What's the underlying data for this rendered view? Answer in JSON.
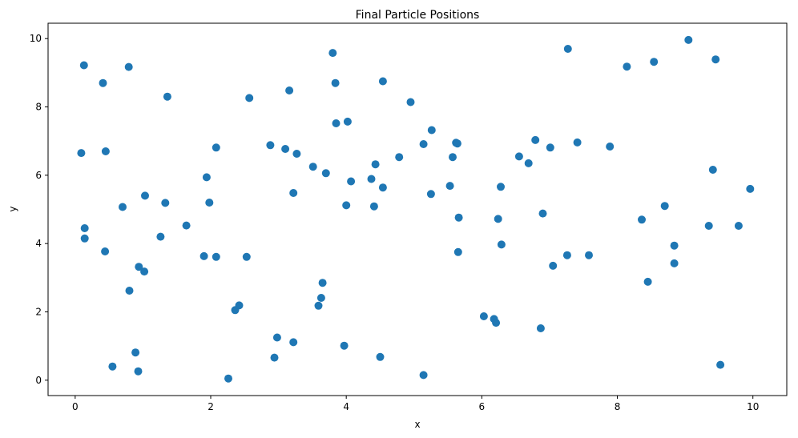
{
  "chart_data": {
    "type": "scatter",
    "title": "Final Particle Positions",
    "xlabel": "x",
    "ylabel": "y",
    "xlim": [
      -0.4,
      10.5
    ],
    "ylim": [
      -0.45,
      10.45
    ],
    "xticks": [
      0,
      2,
      4,
      6,
      8,
      10
    ],
    "yticks": [
      0,
      2,
      4,
      6,
      8,
      10
    ],
    "grid": false,
    "marker_color": "#1f77b4",
    "points": [
      [
        0.09,
        6.65
      ],
      [
        0.13,
        9.22
      ],
      [
        0.14,
        4.45
      ],
      [
        0.14,
        4.15
      ],
      [
        0.41,
        8.7
      ],
      [
        0.44,
        3.77
      ],
      [
        0.45,
        6.7
      ],
      [
        0.55,
        0.4
      ],
      [
        0.7,
        5.07
      ],
      [
        0.79,
        9.17
      ],
      [
        0.8,
        2.62
      ],
      [
        0.89,
        0.81
      ],
      [
        0.93,
        0.26
      ],
      [
        0.94,
        3.32
      ],
      [
        1.02,
        3.18
      ],
      [
        1.03,
        5.4
      ],
      [
        1.26,
        4.2
      ],
      [
        1.33,
        5.19
      ],
      [
        1.36,
        8.3
      ],
      [
        1.64,
        4.53
      ],
      [
        1.9,
        3.63
      ],
      [
        1.94,
        5.94
      ],
      [
        1.98,
        5.2
      ],
      [
        2.08,
        6.81
      ],
      [
        2.08,
        3.61
      ],
      [
        2.26,
        0.05
      ],
      [
        2.36,
        2.05
      ],
      [
        2.42,
        2.19
      ],
      [
        2.53,
        3.61
      ],
      [
        2.57,
        8.26
      ],
      [
        2.88,
        6.88
      ],
      [
        2.94,
        0.66
      ],
      [
        2.98,
        1.25
      ],
      [
        3.1,
        6.77
      ],
      [
        3.16,
        8.48
      ],
      [
        3.22,
        5.48
      ],
      [
        3.22,
        1.11
      ],
      [
        3.27,
        6.63
      ],
      [
        3.51,
        6.25
      ],
      [
        3.59,
        2.18
      ],
      [
        3.63,
        2.41
      ],
      [
        3.65,
        2.85
      ],
      [
        3.7,
        6.06
      ],
      [
        3.8,
        9.58
      ],
      [
        3.84,
        8.7
      ],
      [
        3.85,
        7.52
      ],
      [
        3.97,
        1.01
      ],
      [
        4.0,
        5.12
      ],
      [
        4.02,
        7.57
      ],
      [
        4.07,
        5.82
      ],
      [
        4.37,
        5.89
      ],
      [
        4.41,
        5.09
      ],
      [
        4.43,
        6.32
      ],
      [
        4.5,
        0.68
      ],
      [
        4.54,
        5.64
      ],
      [
        4.54,
        8.75
      ],
      [
        4.78,
        6.53
      ],
      [
        4.95,
        8.14
      ],
      [
        5.14,
        6.91
      ],
      [
        5.14,
        0.15
      ],
      [
        5.25,
        5.45
      ],
      [
        5.26,
        7.32
      ],
      [
        5.53,
        5.69
      ],
      [
        5.57,
        6.53
      ],
      [
        5.62,
        6.95
      ],
      [
        5.64,
        6.93
      ],
      [
        5.65,
        3.75
      ],
      [
        5.66,
        4.76
      ],
      [
        6.03,
        1.87
      ],
      [
        6.18,
        1.79
      ],
      [
        6.21,
        1.68
      ],
      [
        6.24,
        4.72
      ],
      [
        6.28,
        5.66
      ],
      [
        6.29,
        3.97
      ],
      [
        6.55,
        6.55
      ],
      [
        6.69,
        6.35
      ],
      [
        6.79,
        7.03
      ],
      [
        6.87,
        1.52
      ],
      [
        6.9,
        4.88
      ],
      [
        7.01,
        6.81
      ],
      [
        7.05,
        3.35
      ],
      [
        7.26,
        3.66
      ],
      [
        7.27,
        9.7
      ],
      [
        7.41,
        6.96
      ],
      [
        7.58,
        3.66
      ],
      [
        7.89,
        6.84
      ],
      [
        8.14,
        9.18
      ],
      [
        8.36,
        4.7
      ],
      [
        8.45,
        2.88
      ],
      [
        8.54,
        9.32
      ],
      [
        8.7,
        5.1
      ],
      [
        8.84,
        3.94
      ],
      [
        8.84,
        3.42
      ],
      [
        9.05,
        9.96
      ],
      [
        9.35,
        4.52
      ],
      [
        9.41,
        6.16
      ],
      [
        9.45,
        9.39
      ],
      [
        9.52,
        0.45
      ],
      [
        9.79,
        4.52
      ],
      [
        9.96,
        5.6
      ]
    ]
  }
}
